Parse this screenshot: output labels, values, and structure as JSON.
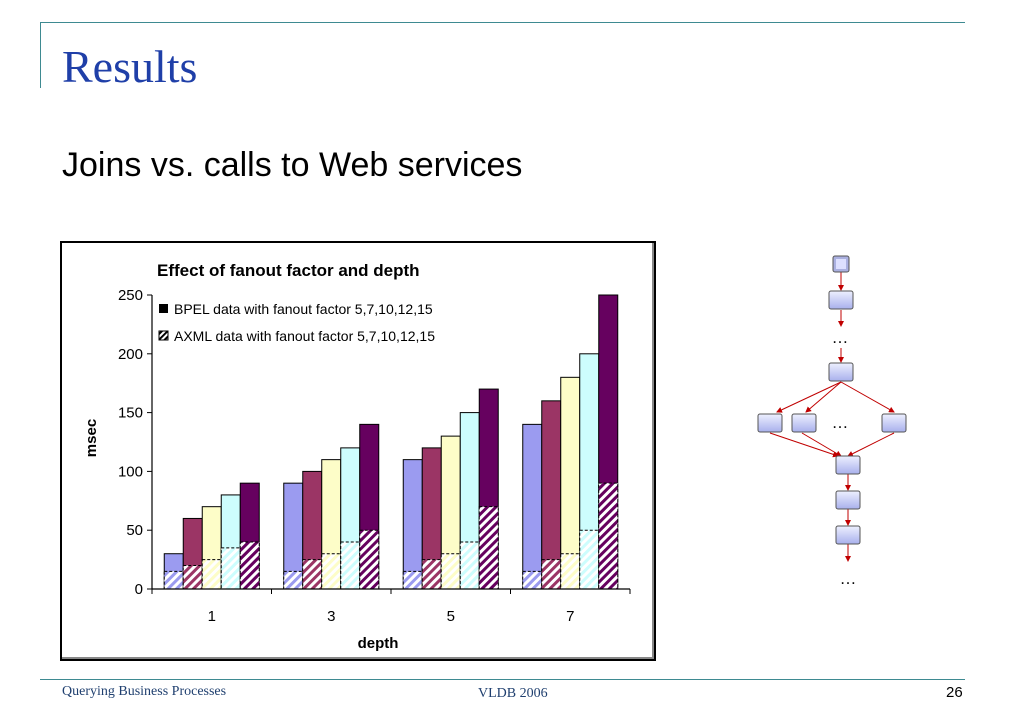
{
  "slide": {
    "title": "Results",
    "subtitle": "Joins vs. calls to Web services",
    "footer_left": "Querying Business Processes",
    "footer_center": "VLDB 2006",
    "page_number": "26"
  },
  "diagram": {
    "ellipsis": "…"
  },
  "chart_data": {
    "type": "bar",
    "title": "Effect of fanout factor and depth",
    "xlabel": "depth",
    "ylabel": "msec",
    "categories": [
      "1",
      "3",
      "5",
      "7"
    ],
    "ylim": [
      0,
      250
    ],
    "yticks": [
      0,
      50,
      100,
      150,
      200,
      250
    ],
    "grid": false,
    "legend_position": "top-left",
    "legend": [
      {
        "label": "BPEL data with fanout factor 5,7,10,12,15",
        "marker": "solid"
      },
      {
        "label": "AXML  data with fanout factor 5,7,10,12,15",
        "marker": "hatched"
      }
    ],
    "series": [
      {
        "fanout": 5,
        "color": "#9b9bf0",
        "bpel": [
          30,
          90,
          110,
          140
        ],
        "axml": [
          15,
          15,
          15,
          15
        ]
      },
      {
        "fanout": 7,
        "color": "#9b3565",
        "bpel": [
          60,
          100,
          120,
          160
        ],
        "axml": [
          20,
          25,
          25,
          25
        ]
      },
      {
        "fanout": 10,
        "color": "#fdfdc8",
        "bpel": [
          70,
          110,
          130,
          180
        ],
        "axml": [
          25,
          30,
          30,
          30
        ]
      },
      {
        "fanout": 12,
        "color": "#cdfdfd",
        "bpel": [
          80,
          120,
          150,
          200
        ],
        "axml": [
          35,
          40,
          40,
          50
        ]
      },
      {
        "fanout": 15,
        "color": "#66015f",
        "bpel": [
          90,
          140,
          170,
          250
        ],
        "axml": [
          40,
          50,
          70,
          90
        ]
      }
    ]
  }
}
